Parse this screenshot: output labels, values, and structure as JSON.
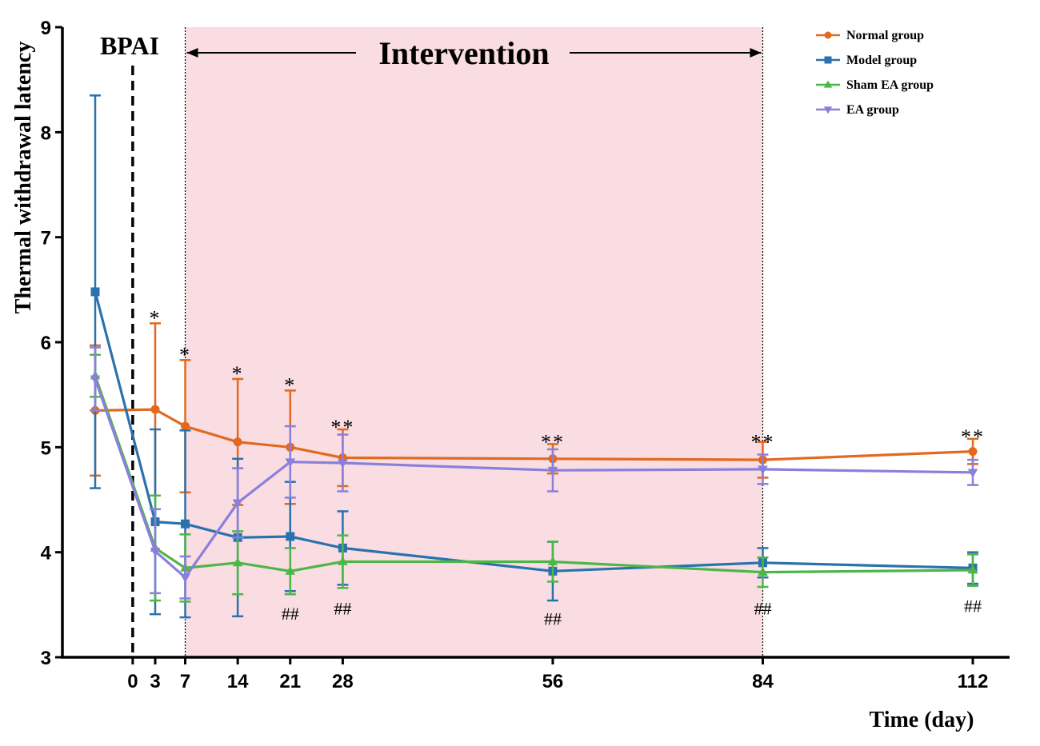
{
  "chart_data": {
    "type": "line",
    "title": "",
    "xlabel": "Time (day)",
    "ylabel": "Thermal withdrawal latency",
    "ylim": [
      3,
      9
    ],
    "yticks": [
      3,
      4,
      5,
      6,
      7,
      8,
      9
    ],
    "xticks": [
      0,
      3,
      7,
      14,
      21,
      28,
      56,
      84,
      112
    ],
    "baseline_x": -5,
    "grid": false,
    "legend_position": "top-right",
    "series": [
      {
        "name": "Normal group",
        "color": "#e2691f",
        "marker": "circle",
        "x": [
          -5,
          3,
          7,
          14,
          21,
          28,
          56,
          84,
          112
        ],
        "values": [
          5.35,
          5.36,
          5.2,
          5.05,
          5.0,
          4.9,
          4.89,
          4.88,
          4.96
        ],
        "err": [
          0.62,
          0.82,
          0.63,
          0.6,
          0.54,
          0.27,
          0.14,
          0.17,
          0.12
        ]
      },
      {
        "name": "Model group",
        "color": "#2a72ad",
        "marker": "square",
        "x": [
          -5,
          3,
          7,
          14,
          21,
          28,
          56,
          84,
          112
        ],
        "values": [
          6.48,
          4.29,
          4.27,
          4.14,
          4.15,
          4.04,
          3.82,
          3.9,
          3.85
        ],
        "err": [
          1.87,
          0.88,
          0.89,
          0.75,
          0.52,
          0.35,
          0.28,
          0.14,
          0.15
        ]
      },
      {
        "name": "Sham EA group",
        "color": "#4cb748",
        "marker": "triangle-up",
        "x": [
          -5,
          3,
          7,
          14,
          21,
          28,
          56,
          84,
          112
        ],
        "values": [
          5.68,
          4.04,
          3.85,
          3.9,
          3.82,
          3.91,
          3.91,
          3.81,
          3.83
        ],
        "err": [
          0.2,
          0.5,
          0.32,
          0.3,
          0.22,
          0.25,
          0.19,
          0.14,
          0.15
        ]
      },
      {
        "name": "EA group",
        "color": "#8a7fdb",
        "marker": "triangle-down",
        "x": [
          -5,
          3,
          7,
          14,
          21,
          28,
          56,
          84,
          112
        ],
        "values": [
          5.65,
          4.01,
          3.76,
          4.47,
          4.86,
          4.85,
          4.78,
          4.79,
          4.76
        ],
        "err": [
          0.3,
          0.4,
          0.2,
          0.33,
          0.34,
          0.27,
          0.2,
          0.14,
          0.12
        ]
      }
    ],
    "annotations": {
      "bpai_label": "BPAI",
      "bpai_x": 0,
      "intervention_label": "Intervention",
      "intervention_range": [
        7,
        84
      ],
      "star_marks": [
        {
          "x": 3,
          "y": 6.3,
          "text": "*"
        },
        {
          "x": 7,
          "y": 5.95,
          "text": "*"
        },
        {
          "x": 14,
          "y": 5.77,
          "text": "*"
        },
        {
          "x": 21,
          "y": 5.66,
          "text": "*"
        },
        {
          "x": 28,
          "y": 5.26,
          "text": "**"
        },
        {
          "x": 56,
          "y": 5.12,
          "text": "**"
        },
        {
          "x": 84,
          "y": 5.12,
          "text": "**"
        },
        {
          "x": 112,
          "y": 5.17,
          "text": "**"
        }
      ],
      "hash_marks": [
        {
          "x": 21,
          "y": 3.42,
          "text": "##"
        },
        {
          "x": 28,
          "y": 3.47,
          "text": "##"
        },
        {
          "x": 56,
          "y": 3.37,
          "text": "##"
        },
        {
          "x": 84,
          "y": 3.47,
          "text": "##"
        },
        {
          "x": 112,
          "y": 3.49,
          "text": "##"
        }
      ]
    }
  }
}
